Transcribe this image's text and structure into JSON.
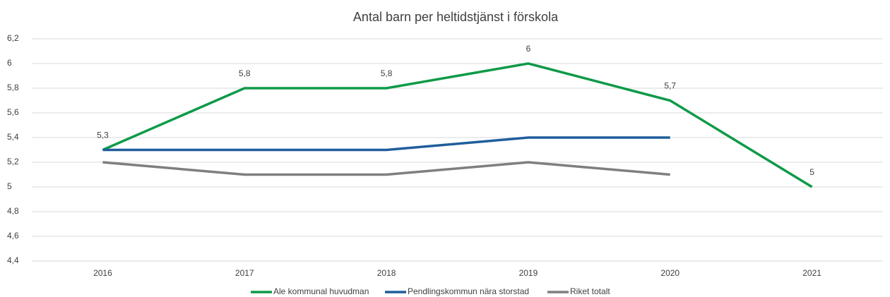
{
  "chart_data": {
    "type": "line",
    "title": "Antal barn per heltidstjänst i förskola",
    "categories": [
      "2016",
      "2017",
      "2018",
      "2019",
      "2020",
      "2021"
    ],
    "series": [
      {
        "name": "Ale kommunal huvudman",
        "color": "#0e9a48",
        "values": [
          5.3,
          5.8,
          5.8,
          6,
          5.7,
          5
        ],
        "value_labels": [
          "5,3",
          "5,8",
          "5,8",
          "6",
          "5,7",
          "5"
        ]
      },
      {
        "name": "Pendlingskommun nära storstad",
        "color": "#1f5e9c",
        "values": [
          5.3,
          5.3,
          5.3,
          5.4,
          5.4,
          null
        ]
      },
      {
        "name": "Riket totalt",
        "color": "#7f7f7f",
        "values": [
          5.2,
          5.1,
          5.1,
          5.2,
          5.1,
          null
        ]
      }
    ],
    "ylim": [
      4.4,
      6.2
    ],
    "yticks": [
      {
        "value": 4.4,
        "label": "4,4"
      },
      {
        "value": 4.6,
        "label": "4,6"
      },
      {
        "value": 4.8,
        "label": "4,8"
      },
      5,
      {
        "value": 5.2,
        "label": "5,2"
      },
      {
        "value": 5.4,
        "label": "5,4"
      },
      {
        "value": 5.6,
        "label": "5,6"
      },
      {
        "value": 5.8,
        "label": "5,8"
      },
      6,
      {
        "value": 6.2,
        "label": "6,2"
      }
    ],
    "grid": true,
    "legend": "bottom"
  }
}
